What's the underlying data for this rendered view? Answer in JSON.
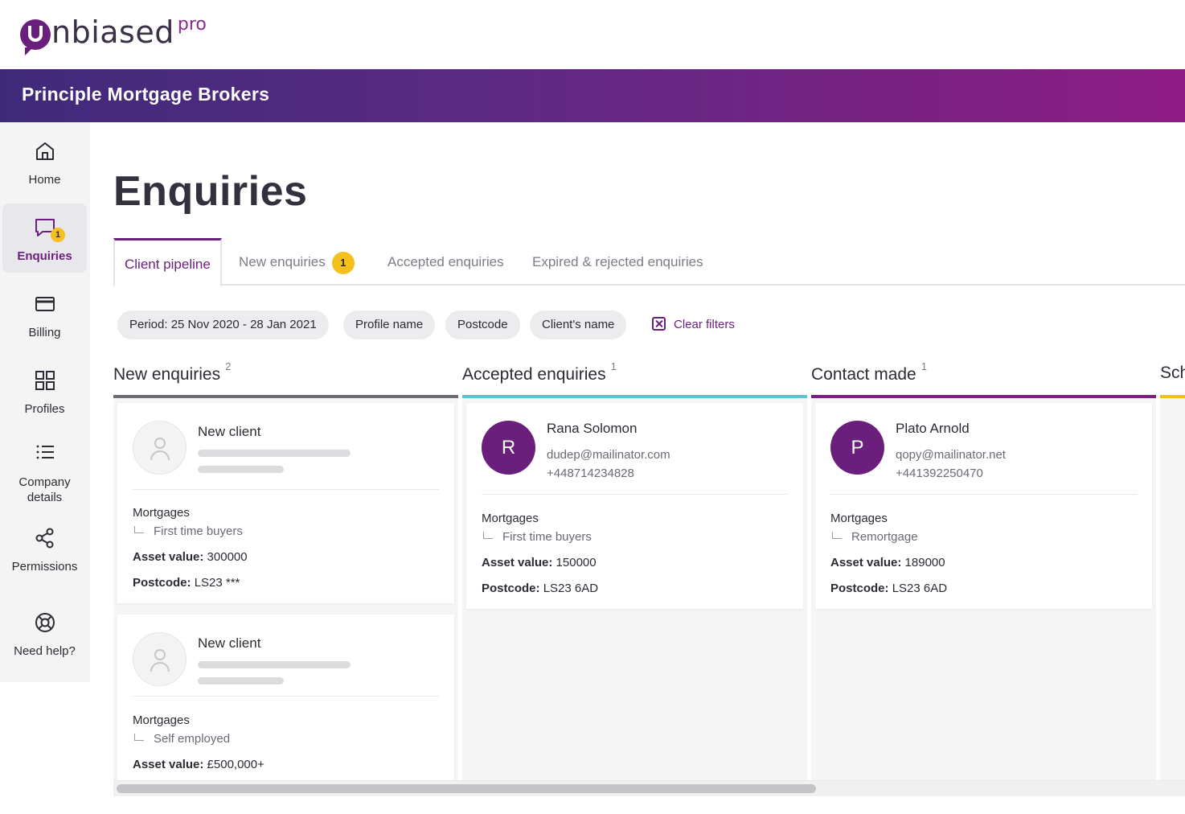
{
  "brand": {
    "logo_text": "nbiased",
    "logo_suffix": "pro",
    "company": "Principle Mortgage Brokers"
  },
  "sidebar": {
    "items": [
      {
        "label": "Home",
        "icon": "home-icon"
      },
      {
        "label": "Enquiries",
        "icon": "chat-icon",
        "badge": "1",
        "active": true
      },
      {
        "label": "Billing",
        "icon": "card-icon"
      },
      {
        "label": "Profiles",
        "icon": "grid-icon"
      },
      {
        "label": "Company details",
        "icon": "list-icon"
      },
      {
        "label": "Permissions",
        "icon": "share-icon"
      },
      {
        "label": "Need help?",
        "icon": "lifebuoy-icon"
      }
    ]
  },
  "page": {
    "title": "Enquiries"
  },
  "tabs": [
    {
      "label": "Client pipeline",
      "active": true
    },
    {
      "label": "New enquiries",
      "badge": "1"
    },
    {
      "label": "Accepted enquiries"
    },
    {
      "label": "Expired & rejected enquiries"
    }
  ],
  "filters": {
    "period": "Period: 25 Nov 2020 - 28 Jan 2021",
    "profile": "Profile name",
    "postcode": "Postcode",
    "client": "Client's name",
    "clear": "Clear filters"
  },
  "columns": [
    {
      "title": "New enquiries",
      "count": "2",
      "color": "#6b6b70",
      "cards": [
        {
          "name": "New client",
          "category": "Mortgages",
          "sub": "First time buyers",
          "asset_label": "Asset value:",
          "asset": "300000",
          "postcode_label": "Postcode:",
          "postcode": "LS23 ***"
        },
        {
          "name": "New client",
          "category": "Mortgages",
          "sub": "Self employed",
          "asset_label": "Asset value:",
          "asset": "£500,000+"
        }
      ]
    },
    {
      "title": "Accepted enquiries",
      "count": "1",
      "color": "#5fc3cf",
      "cards": [
        {
          "initial": "R",
          "name": "Rana Solomon",
          "email": "dudep@mailinator.com",
          "phone": "+448714234828",
          "category": "Mortgages",
          "sub": "First time buyers",
          "asset_label": "Asset value:",
          "asset": "150000",
          "postcode_label": "Postcode:",
          "postcode": "LS23 6AD"
        }
      ]
    },
    {
      "title": "Contact made",
      "count": "1",
      "color": "#7a1f80",
      "cards": [
        {
          "initial": "P",
          "name": "Plato Arnold",
          "email": "qopy@mailinator.net",
          "phone": "+441392250470",
          "category": "Mortgages",
          "sub": "Remortgage",
          "asset_label": "Asset value:",
          "asset": "189000",
          "postcode_label": "Postcode:",
          "postcode": "LS23 6AD"
        }
      ]
    },
    {
      "title": "Sch",
      "color": "#f5c01b"
    }
  ],
  "colors": {
    "accent": "#6b1f7c",
    "badge": "#f5c01b"
  }
}
